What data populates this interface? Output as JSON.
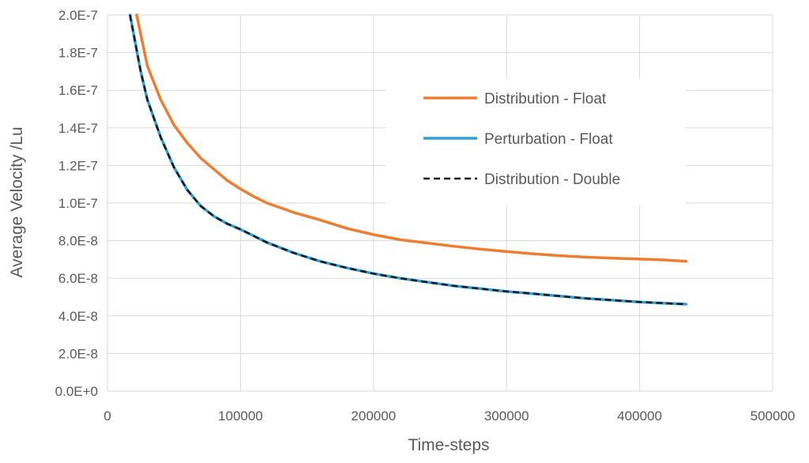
{
  "chart_data": {
    "type": "line",
    "title": "",
    "xlabel": "Time-steps",
    "ylabel": "Average Velocity /Lu",
    "xlim": [
      0,
      500000
    ],
    "ylim": [
      0,
      2e-07
    ],
    "grid": true,
    "legend_position": "top-right",
    "xticks": [
      0,
      100000,
      200000,
      300000,
      400000,
      500000
    ],
    "xtick_labels": [
      "0",
      "100000",
      "200000",
      "300000",
      "400000",
      "500000"
    ],
    "yticks": [
      0,
      2e-08,
      4e-08,
      6e-08,
      8e-08,
      1e-07,
      1.2e-07,
      1.4e-07,
      1.6e-07,
      1.8e-07,
      2e-07
    ],
    "ytick_labels": [
      "0.0E+0",
      "2.0E-8",
      "4.0E-8",
      "6.0E-8",
      "8.0E-8",
      "1.0E-7",
      "1.2E-7",
      "1.4E-7",
      "1.6E-7",
      "1.8E-7",
      "2.0E-7"
    ],
    "series": [
      {
        "name": "Distribution - Float",
        "color": "#ED7D31",
        "style": "solid",
        "x": [
          22000,
          30000,
          40000,
          50000,
          60000,
          70000,
          80000,
          90000,
          100000,
          110000,
          120000,
          140000,
          160000,
          180000,
          200000,
          220000,
          240000,
          260000,
          280000,
          300000,
          320000,
          340000,
          360000,
          380000,
          400000,
          420000,
          435000
        ],
        "y": [
          2e-07,
          1.73e-07,
          1.55e-07,
          1.415e-07,
          1.32e-07,
          1.24e-07,
          1.18e-07,
          1.12e-07,
          1.075e-07,
          1.035e-07,
          1e-07,
          9.5e-08,
          9.1e-08,
          8.65e-08,
          8.32e-08,
          8.05e-08,
          7.88e-08,
          7.7e-08,
          7.55e-08,
          7.42e-08,
          7.3e-08,
          7.2e-08,
          7.12e-08,
          7.07e-08,
          7.02e-08,
          6.97e-08,
          6.9e-08
        ]
      },
      {
        "name": "Perturbation - Float",
        "color": "#2E9FD8",
        "style": "solid",
        "x": [
          17000,
          25000,
          30000,
          40000,
          50000,
          60000,
          70000,
          80000,
          90000,
          100000,
          120000,
          140000,
          160000,
          180000,
          200000,
          220000,
          240000,
          260000,
          280000,
          300000,
          320000,
          340000,
          360000,
          380000,
          400000,
          420000,
          435000
        ],
        "y": [
          2e-07,
          1.7e-07,
          1.55e-07,
          1.35e-07,
          1.19e-07,
          1.07e-07,
          9.85e-08,
          9.3e-08,
          8.9e-08,
          8.6e-08,
          7.9e-08,
          7.35e-08,
          6.9e-08,
          6.55e-08,
          6.25e-08,
          6e-08,
          5.8e-08,
          5.6e-08,
          5.45e-08,
          5.3e-08,
          5.18e-08,
          5.05e-08,
          4.93e-08,
          4.83e-08,
          4.74e-08,
          4.67e-08,
          4.62e-08
        ]
      },
      {
        "name": "Distribution - Double",
        "color": "#1a1a1a",
        "style": "dashed",
        "x": [
          17000,
          25000,
          30000,
          40000,
          50000,
          60000,
          70000,
          80000,
          90000,
          100000,
          120000,
          140000,
          160000,
          180000,
          200000,
          220000,
          240000,
          260000,
          280000,
          300000,
          320000,
          340000,
          360000,
          380000,
          400000,
          420000,
          435000
        ],
        "y": [
          2e-07,
          1.7e-07,
          1.55e-07,
          1.35e-07,
          1.19e-07,
          1.07e-07,
          9.85e-08,
          9.3e-08,
          8.9e-08,
          8.6e-08,
          7.9e-08,
          7.35e-08,
          6.9e-08,
          6.55e-08,
          6.25e-08,
          6e-08,
          5.8e-08,
          5.6e-08,
          5.45e-08,
          5.3e-08,
          5.18e-08,
          5.05e-08,
          4.93e-08,
          4.83e-08,
          4.74e-08,
          4.67e-08,
          4.62e-08
        ]
      }
    ]
  }
}
